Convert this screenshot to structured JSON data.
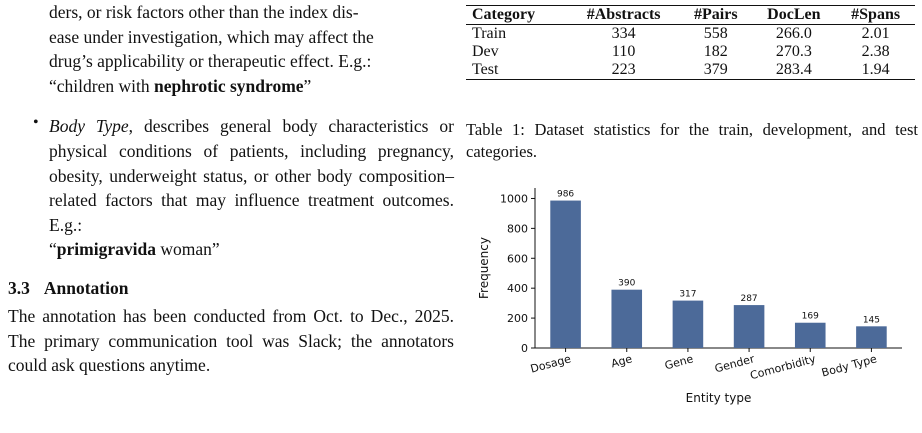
{
  "left_column": {
    "para1_lines": [
      "ders, or risk factors other than the index dis-",
      "ease under investigation, which may affect the",
      "drug’s applicability or therapeutic effect. E.g.:"
    ],
    "para1_example_open": "“children with ",
    "para1_example_bold": "nephrotic syndrome",
    "para1_example_close": "”",
    "bullet_symbol": "•",
    "bullet_term": "Body Type",
    "bullet_text": ", describes general body character­istics or physical conditions of patients, including pregnancy, obesity, underweight status, or other body composition–related factors that may influence treatment outcomes. E.g.:",
    "bullet_example_open": "“",
    "bullet_example_bold": "primigravida",
    "bullet_example_close": " woman”",
    "section_number": "3.3",
    "section_title": "Annotation",
    "section_text": "The annotation has been conducted from Oct. to Dec., 2025. The primary communication tool was Slack; the annotators could ask questions anytime."
  },
  "table": {
    "headers": [
      "Category",
      "#Abstracts",
      "#Pairs",
      "DocLen",
      "#Spans"
    ],
    "rows": [
      [
        "Train",
        "334",
        "558",
        "266.0",
        "2.01"
      ],
      [
        "Dev",
        "110",
        "182",
        "270.3",
        "2.38"
      ],
      [
        "Test",
        "223",
        "379",
        "283.4",
        "1.94"
      ]
    ],
    "caption": "Table 1: Dataset statistics for the train, development, and test categories."
  },
  "chart_data": {
    "type": "bar",
    "categories": [
      "Dosage",
      "Age",
      "Gene",
      "Gender",
      "Comorbidity",
      "Body Type"
    ],
    "values": [
      986,
      390,
      317,
      287,
      169,
      145
    ],
    "xlabel": "Entity type",
    "ylabel": "Frequency",
    "ylim": [
      0,
      1070
    ],
    "yticks": [
      0,
      200,
      400,
      600,
      800,
      1000
    ],
    "bar_color": "#4c6a99",
    "grid": false,
    "legend": "none"
  }
}
